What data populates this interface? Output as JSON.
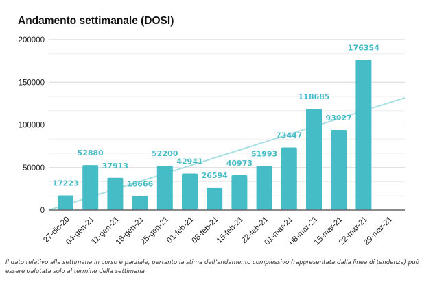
{
  "chart_data": {
    "type": "bar",
    "title": "Andamento settimanale (DOSI)",
    "xlabel": "",
    "ylabel": "",
    "categories": [
      "27-dic-20",
      "04-gen-21",
      "11-gen-21",
      "18-gen-21",
      "25-gen-21",
      "01-feb-21",
      "08-feb-21",
      "15-feb-21",
      "22-feb-21",
      "01-mar-21",
      "08-mar-21",
      "15-mar-21",
      "22-mar-21",
      "29-mar-21"
    ],
    "series": [
      {
        "name": "Dosi",
        "values": [
          17223,
          52880,
          37913,
          16666,
          52200,
          42941,
          26594,
          40973,
          51993,
          73447,
          118685,
          93927,
          176354,
          null
        ]
      }
    ],
    "data_labels": [
      "17223",
      "52880",
      "37913",
      "16666",
      "52200",
      "42941",
      "26594",
      "40973",
      "51993",
      "73447",
      "118685",
      "93927",
      "176354",
      ""
    ],
    "trendline": {
      "type": "linear",
      "start_value": 0,
      "end_value": 131800
    },
    "ylim": [
      0,
      200000
    ],
    "yticks": [
      0,
      50000,
      100000,
      150000,
      200000
    ],
    "ytick_labels": [
      "0",
      "50000",
      "100000",
      "150000",
      "200000"
    ],
    "minor_gridlines_per_interval": 2,
    "grid": true,
    "legend": "none",
    "colors": {
      "bar": "#46bdc6",
      "label": "#46bdc6",
      "trendline": "#a9dfe3",
      "grid": "#e0e0e0",
      "axis": "#666666"
    }
  },
  "footnote": "Il dato relativo alla settimana in corso è parziale, pertanto la stima dell’andamento complessivo (rappresentata dalla linea di tendenza) può essere valutata solo al termine della settimana"
}
